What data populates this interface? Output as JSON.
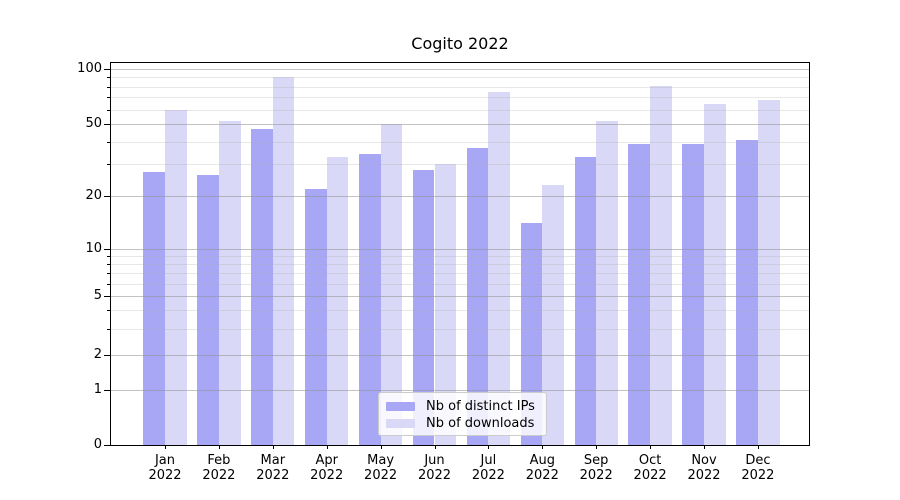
{
  "chart_data": {
    "type": "bar",
    "title": "Cogito 2022",
    "xlabel": "",
    "ylabel": "",
    "categories": [
      "Jan",
      "Feb",
      "Mar",
      "Apr",
      "May",
      "Jun",
      "Jul",
      "Aug",
      "Sep",
      "Oct",
      "Nov",
      "Dec"
    ],
    "category_year": "2022",
    "series": [
      {
        "name": "Nb of distinct IPs",
        "color": "#a7a7f5",
        "values": [
          27,
          26,
          47,
          22,
          34,
          28,
          37,
          14,
          33,
          39,
          39,
          41
        ]
      },
      {
        "name": "Nb of downloads",
        "color": "#d9d9f7",
        "values": [
          60,
          52,
          91,
          33,
          50,
          30,
          75,
          23,
          52,
          81,
          64,
          68
        ]
      }
    ],
    "yscale": "symlog",
    "ylim": [
      0,
      110
    ],
    "y_major_ticks": [
      0,
      1,
      2,
      5,
      10,
      20,
      50,
      100
    ],
    "y_minor_ticks": [
      3,
      4,
      6,
      7,
      8,
      9,
      30,
      40,
      60,
      70,
      80,
      90
    ],
    "grid": true,
    "legend_position": "lower center"
  },
  "colors": {
    "bar_distinct_ips": "#a7a7f5",
    "bar_downloads": "#d9d9f7",
    "grid_major": "#cdcdcd",
    "grid_minor": "#e6e6e6",
    "axis": "#000000",
    "background": "#ffffff"
  }
}
